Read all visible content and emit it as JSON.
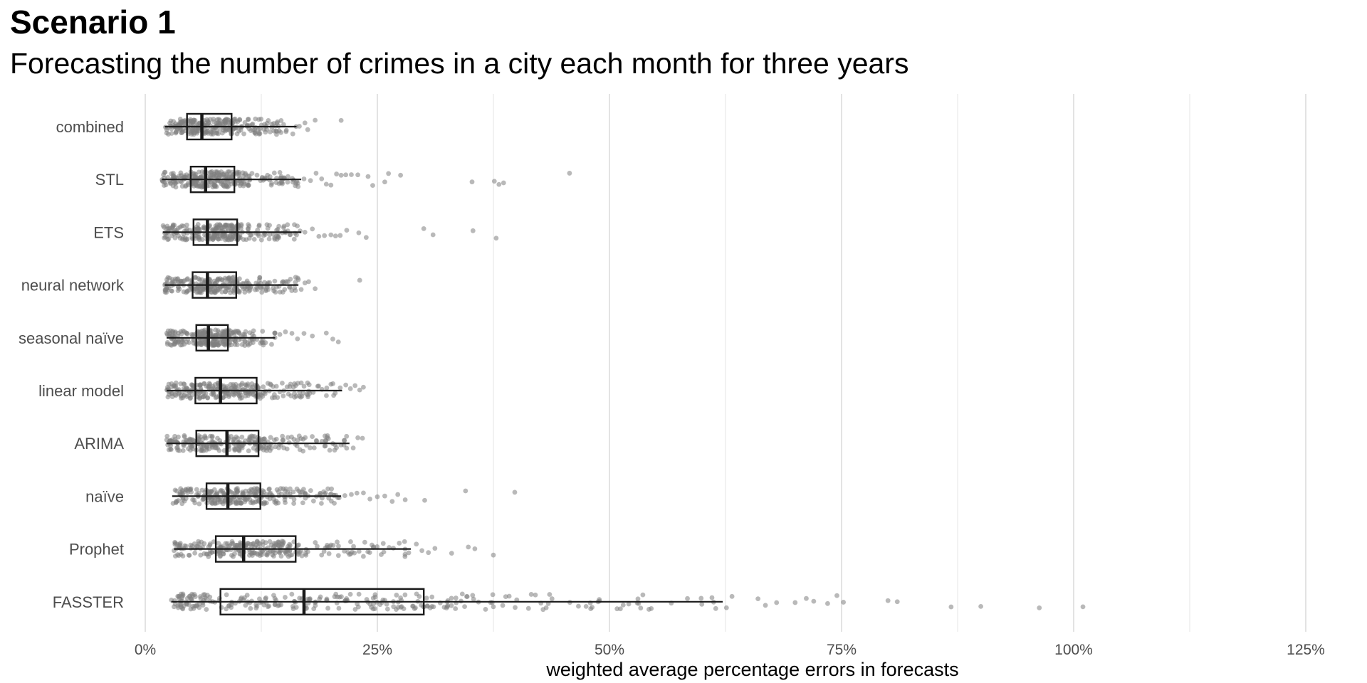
{
  "title": "Scenario 1",
  "subtitle": "Forecasting the number of crimes in a city each month for three years",
  "chart_data": {
    "type": "boxplot",
    "orientation": "horizontal",
    "xlabel": "weighted average percentage errors in forecasts",
    "ylabel": "",
    "xlim": [
      0,
      1.3
    ],
    "x_ticks": [
      0,
      0.25,
      0.5,
      0.75,
      1.0,
      1.25
    ],
    "x_tick_labels": [
      "0%",
      "25%",
      "50%",
      "75%",
      "100%",
      "125%"
    ],
    "grid": "vertical major and minor",
    "point_color": "#808080",
    "box_color": "#1a1a1a",
    "categories": [
      "combined",
      "STL",
      "ETS",
      "neural network",
      "seasonal naïve",
      "linear model",
      "ARIMA",
      "naïve",
      "Prophet",
      "FASSTER"
    ],
    "boxes": [
      {
        "name": "combined",
        "whisker_low": 0.021,
        "q1": 0.045,
        "median": 0.061,
        "q3": 0.093,
        "whisker_high": 0.163,
        "outliers": [
          0.166,
          0.172,
          0.175,
          0.183,
          0.211
        ]
      },
      {
        "name": "STL",
        "whisker_low": 0.018,
        "q1": 0.049,
        "median": 0.065,
        "q3": 0.096,
        "whisker_high": 0.168,
        "outliers": [
          0.171,
          0.178,
          0.184,
          0.19,
          0.195,
          0.2,
          0.206,
          0.211,
          0.216,
          0.222,
          0.229,
          0.24,
          0.245,
          0.258,
          0.262,
          0.275,
          0.352,
          0.376,
          0.381,
          0.386,
          0.457
        ]
      },
      {
        "name": "ETS",
        "whisker_low": 0.019,
        "q1": 0.052,
        "median": 0.067,
        "q3": 0.099,
        "whisker_high": 0.168,
        "outliers": [
          0.172,
          0.18,
          0.187,
          0.193,
          0.2,
          0.205,
          0.21,
          0.217,
          0.23,
          0.238,
          0.3,
          0.31,
          0.353,
          0.378
        ]
      },
      {
        "name": "neural network",
        "whisker_low": 0.021,
        "q1": 0.051,
        "median": 0.067,
        "q3": 0.098,
        "whisker_high": 0.165,
        "outliers": [
          0.168,
          0.172,
          0.176,
          0.183,
          0.231
        ]
      },
      {
        "name": "seasonal naïve",
        "whisker_low": 0.023,
        "q1": 0.055,
        "median": 0.068,
        "q3": 0.089,
        "whisker_high": 0.14,
        "outliers": [
          0.145,
          0.151,
          0.158,
          0.164,
          0.171,
          0.18,
          0.195,
          0.202,
          0.208
        ]
      },
      {
        "name": "linear model",
        "whisker_low": 0.023,
        "q1": 0.054,
        "median": 0.081,
        "q3": 0.12,
        "whisker_high": 0.212,
        "outliers": [
          0.216,
          0.221,
          0.226,
          0.231,
          0.235
        ]
      },
      {
        "name": "ARIMA",
        "whisker_low": 0.023,
        "q1": 0.055,
        "median": 0.088,
        "q3": 0.122,
        "whisker_high": 0.22,
        "outliers": [
          0.224,
          0.229,
          0.234
        ]
      },
      {
        "name": "naïve",
        "whisker_low": 0.029,
        "q1": 0.066,
        "median": 0.089,
        "q3": 0.124,
        "whisker_high": 0.211,
        "outliers": [
          0.215,
          0.222,
          0.228,
          0.235,
          0.242,
          0.25,
          0.258,
          0.266,
          0.272,
          0.28,
          0.301,
          0.345,
          0.398
        ]
      },
      {
        "name": "Prophet",
        "whisker_low": 0.031,
        "q1": 0.076,
        "median": 0.106,
        "q3": 0.162,
        "whisker_high": 0.286,
        "outliers": [
          0.292,
          0.298,
          0.305,
          0.312,
          0.33,
          0.348,
          0.355,
          0.375
        ]
      },
      {
        "name": "FASSTER",
        "whisker_low": 0.028,
        "q1": 0.081,
        "median": 0.171,
        "q3": 0.3,
        "whisker_high": 0.622,
        "outliers": [
          0.626,
          0.632,
          0.66,
          0.668,
          0.68,
          0.7,
          0.712,
          0.72,
          0.735,
          0.745,
          0.752,
          0.8,
          0.81,
          0.868,
          0.9,
          0.963,
          1.01
        ]
      }
    ]
  }
}
